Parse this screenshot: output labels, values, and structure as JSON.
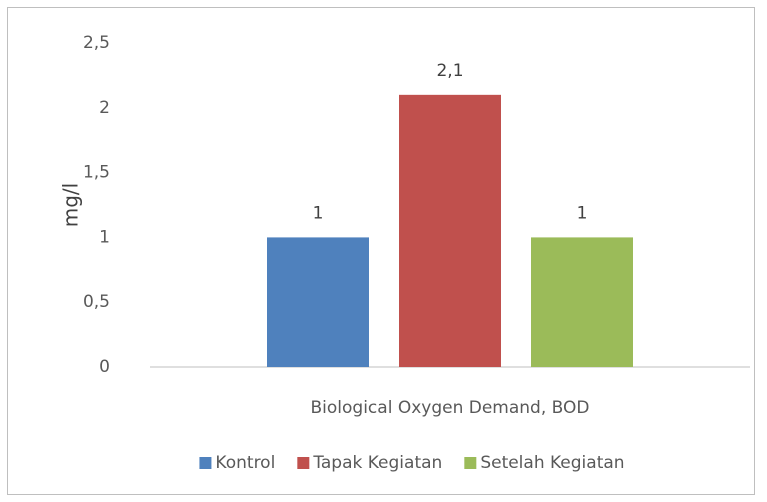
{
  "chart_data": {
    "type": "bar",
    "y_label": "mg/l",
    "categories": [
      "Biological Oxygen Demand, BOD"
    ],
    "series": [
      {
        "name": "Kontrol",
        "color": "#4f81bd",
        "values": [
          1
        ]
      },
      {
        "name": "Tapak Kegiatan",
        "color": "#c0504d",
        "values": [
          2.1
        ],
        "value_labels": [
          "2,1"
        ]
      },
      {
        "name": "Setelah Kegiatan",
        "color": "#9bbb59",
        "values": [
          1
        ]
      }
    ],
    "ylim": [
      0,
      2.5
    ],
    "yticks": [
      0,
      {
        "value": 0.5,
        "label": "0,5"
      },
      1,
      {
        "value": 1.5,
        "label": "1,5"
      },
      2,
      {
        "value": 2.5,
        "label": "2,5"
      }
    ],
    "grid": false,
    "legend": "bottom"
  }
}
